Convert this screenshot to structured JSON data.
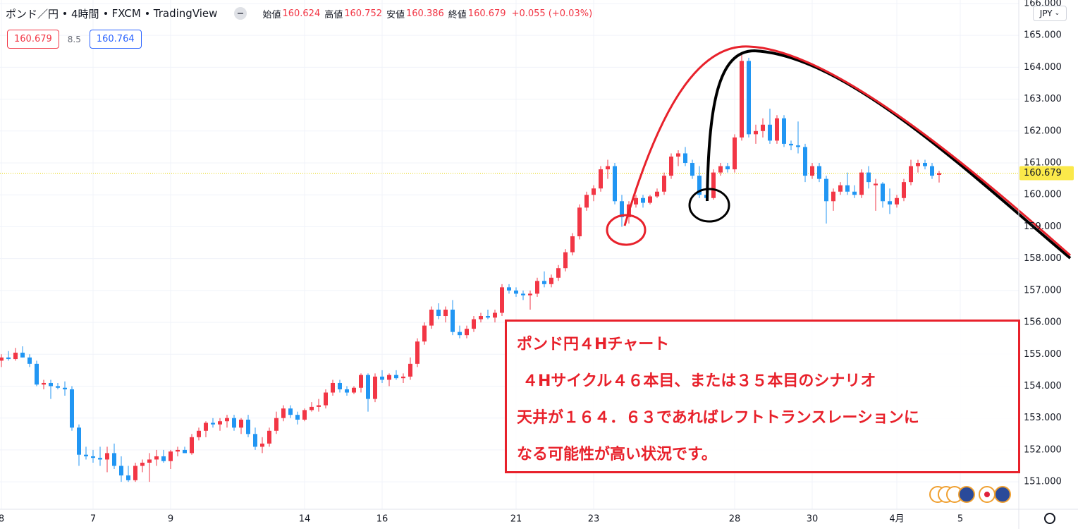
{
  "header": {
    "symbol": "ポンド／円",
    "interval": "4時間",
    "exchange": "FXCM",
    "source": "TradingView",
    "open_label": "始値",
    "high_label": "高値",
    "low_label": "安値",
    "close_label": "終値",
    "change": "+0.055 (+0.03%)"
  },
  "quote": {
    "sell": 160.679,
    "spread": 8.5,
    "buy": 160.764
  },
  "currency": "JPY",
  "annotation": {
    "lines": [
      "ポンド円４Hチャート",
      "４Hサイクル４６本目、または３５本目のシナリオ",
      "天井が１６４．６３であればレフトトランスレーションに",
      "なる可能性が高い状況です。"
    ]
  },
  "chart_data": {
    "type": "candlestick",
    "up_color": "#f23645",
    "down_color": "#2196f3",
    "grid": true,
    "ylim": [
      150.14,
      166.11
    ],
    "yticks": [
      {
        "value": 151,
        "label": "151.000"
      },
      {
        "value": 152,
        "label": "152.000"
      },
      {
        "value": 153,
        "label": "153.000"
      },
      {
        "value": 154,
        "label": "154.000"
      },
      {
        "value": 155,
        "label": "155.000"
      },
      {
        "value": 156,
        "label": "156.000"
      },
      {
        "value": 157,
        "label": "157.000"
      },
      {
        "value": 158,
        "label": "158.000"
      },
      {
        "value": 159,
        "label": "159.000"
      },
      {
        "value": 160,
        "label": "160.000"
      },
      {
        "value": 161,
        "label": "161.000"
      },
      {
        "value": 162,
        "label": "162.000"
      },
      {
        "value": 163,
        "label": "163.000"
      },
      {
        "value": 164,
        "label": "164.000"
      },
      {
        "value": 165,
        "label": "165.000"
      },
      {
        "value": 166,
        "label": "166.000"
      }
    ],
    "xlim": [
      -0.2,
      144.3
    ],
    "xticks": [
      {
        "value": 0,
        "label": "8"
      },
      {
        "value": 13,
        "label": "7"
      },
      {
        "value": 24,
        "label": "9"
      },
      {
        "value": 43,
        "label": "14"
      },
      {
        "value": 54,
        "label": "16"
      },
      {
        "value": 73,
        "label": "21"
      },
      {
        "value": 84,
        "label": "23"
      },
      {
        "value": 104,
        "label": "28"
      },
      {
        "value": 115,
        "label": "30"
      },
      {
        "value": 127,
        "label": "4月"
      },
      {
        "value": 136,
        "label": "5"
      }
    ],
    "ohlc": [
      [
        154.8,
        155.0,
        154.6,
        154.9
      ],
      [
        154.9,
        155.1,
        154.8,
        154.85
      ],
      [
        154.85,
        155.2,
        154.8,
        155.05
      ],
      [
        155.05,
        155.25,
        154.9,
        154.9
      ],
      [
        154.9,
        155.0,
        154.6,
        154.7
      ],
      [
        154.7,
        154.8,
        154.0,
        154.05
      ],
      [
        154.05,
        154.2,
        153.9,
        154.1
      ],
      [
        154.1,
        154.2,
        153.6,
        154.0
      ],
      [
        154.0,
        154.1,
        153.9,
        153.95
      ],
      [
        153.95,
        154.15,
        153.7,
        153.9
      ],
      [
        153.9,
        154.0,
        152.6,
        152.7
      ],
      [
        152.7,
        152.8,
        151.5,
        151.85
      ],
      [
        151.85,
        152.1,
        151.7,
        151.8
      ],
      [
        151.8,
        152.0,
        151.6,
        151.75
      ],
      [
        151.75,
        152.1,
        151.5,
        151.7
      ],
      [
        151.7,
        152.1,
        151.3,
        151.9
      ],
      [
        151.9,
        152.2,
        151.4,
        151.5
      ],
      [
        151.5,
        151.8,
        151.0,
        151.2
      ],
      [
        151.2,
        151.5,
        151.0,
        151.05
      ],
      [
        151.05,
        151.6,
        151.0,
        151.5
      ],
      [
        151.5,
        151.7,
        151.3,
        151.6
      ],
      [
        151.6,
        151.9,
        151.0,
        151.7
      ],
      [
        151.7,
        152.0,
        151.5,
        151.8
      ],
      [
        151.8,
        152.0,
        151.6,
        151.65
      ],
      [
        151.65,
        152.0,
        151.4,
        151.95
      ],
      [
        151.95,
        152.1,
        151.8,
        152.0
      ],
      [
        152.0,
        152.1,
        151.9,
        151.9
      ],
      [
        151.9,
        152.5,
        151.85,
        152.4
      ],
      [
        152.4,
        152.7,
        152.3,
        152.6
      ],
      [
        152.6,
        152.9,
        152.4,
        152.85
      ],
      [
        152.85,
        153.0,
        152.7,
        152.8
      ],
      [
        152.8,
        153.0,
        152.6,
        152.9
      ],
      [
        152.9,
        153.1,
        152.7,
        153.0
      ],
      [
        153.0,
        153.1,
        152.6,
        152.7
      ],
      [
        152.7,
        153.0,
        152.5,
        152.95
      ],
      [
        152.95,
        153.1,
        152.4,
        152.5
      ],
      [
        152.5,
        152.7,
        152.0,
        152.1
      ],
      [
        152.1,
        152.4,
        151.9,
        152.2
      ],
      [
        152.2,
        152.7,
        152.1,
        152.6
      ],
      [
        152.6,
        153.2,
        152.5,
        153.0
      ],
      [
        153.0,
        153.4,
        152.9,
        153.3
      ],
      [
        153.3,
        153.4,
        153.0,
        153.1
      ],
      [
        153.1,
        153.2,
        152.8,
        152.95
      ],
      [
        152.95,
        153.3,
        152.9,
        153.25
      ],
      [
        153.25,
        153.5,
        153.2,
        153.35
      ],
      [
        153.35,
        153.6,
        153.2,
        153.4
      ],
      [
        153.4,
        153.9,
        153.3,
        153.8
      ],
      [
        153.8,
        154.2,
        153.7,
        154.1
      ],
      [
        154.1,
        154.2,
        153.8,
        153.9
      ],
      [
        153.9,
        154.0,
        153.7,
        153.8
      ],
      [
        153.8,
        154.0,
        153.75,
        153.95
      ],
      [
        153.95,
        154.4,
        153.8,
        154.35
      ],
      [
        154.35,
        154.4,
        153.2,
        153.6
      ],
      [
        153.6,
        154.4,
        153.5,
        154.3
      ],
      [
        154.3,
        154.5,
        154.1,
        154.2
      ],
      [
        154.2,
        154.4,
        154.0,
        154.35
      ],
      [
        154.35,
        154.5,
        154.2,
        154.25
      ],
      [
        154.25,
        154.4,
        154.1,
        154.3
      ],
      [
        154.3,
        154.9,
        154.2,
        154.7
      ],
      [
        154.7,
        155.5,
        154.6,
        155.4
      ],
      [
        155.4,
        156.0,
        155.3,
        155.9
      ],
      [
        155.9,
        156.5,
        155.8,
        156.4
      ],
      [
        156.4,
        156.6,
        156.1,
        156.2
      ],
      [
        156.2,
        156.5,
        156.0,
        156.4
      ],
      [
        156.4,
        156.7,
        155.6,
        155.7
      ],
      [
        155.7,
        155.9,
        155.5,
        155.6
      ],
      [
        155.6,
        155.9,
        155.5,
        155.8
      ],
      [
        155.8,
        156.2,
        155.7,
        156.1
      ],
      [
        156.1,
        156.3,
        156.0,
        156.2
      ],
      [
        156.2,
        156.4,
        156.1,
        156.15
      ],
      [
        156.15,
        156.4,
        156.0,
        156.3
      ],
      [
        156.3,
        157.2,
        156.2,
        157.1
      ],
      [
        157.1,
        157.2,
        156.9,
        157.0
      ],
      [
        157.0,
        157.1,
        156.8,
        156.9
      ],
      [
        156.9,
        157.0,
        156.7,
        156.85
      ],
      [
        156.85,
        157.0,
        156.4,
        156.9
      ],
      [
        156.9,
        157.4,
        156.8,
        157.3
      ],
      [
        157.3,
        157.6,
        157.1,
        157.2
      ],
      [
        157.2,
        157.5,
        157.1,
        157.4
      ],
      [
        157.4,
        157.8,
        157.3,
        157.7
      ],
      [
        157.7,
        158.3,
        157.6,
        158.2
      ],
      [
        158.2,
        158.8,
        158.1,
        158.7
      ],
      [
        158.7,
        159.7,
        158.6,
        159.6
      ],
      [
        159.6,
        160.1,
        159.5,
        160.0
      ],
      [
        160.0,
        160.3,
        159.8,
        160.2
      ],
      [
        160.2,
        160.9,
        160.1,
        160.8
      ],
      [
        160.8,
        161.1,
        160.5,
        160.9
      ],
      [
        160.9,
        161.0,
        159.7,
        159.8
      ],
      [
        159.8,
        160.0,
        159.0,
        159.3
      ],
      [
        159.3,
        159.8,
        159.1,
        159.7
      ],
      [
        159.7,
        160.0,
        159.6,
        159.9
      ],
      [
        159.9,
        160.0,
        159.6,
        159.75
      ],
      [
        159.75,
        160.0,
        159.7,
        159.95
      ],
      [
        159.95,
        160.2,
        159.9,
        160.1
      ],
      [
        160.1,
        160.7,
        160.0,
        160.6
      ],
      [
        160.6,
        161.3,
        160.5,
        161.2
      ],
      [
        161.2,
        161.4,
        160.9,
        161.3
      ],
      [
        161.3,
        161.5,
        160.9,
        161.0
      ],
      [
        161.0,
        161.1,
        160.5,
        160.6
      ],
      [
        160.6,
        160.9,
        159.9,
        160.0
      ],
      [
        160.0,
        160.3,
        159.8,
        159.9
      ],
      [
        159.9,
        160.8,
        159.85,
        160.7
      ],
      [
        160.7,
        161.0,
        160.6,
        160.9
      ],
      [
        160.9,
        161.0,
        160.7,
        160.8
      ],
      [
        160.8,
        161.9,
        160.7,
        161.8
      ],
      [
        161.8,
        164.4,
        161.7,
        164.2
      ],
      [
        164.2,
        164.3,
        161.8,
        161.9
      ],
      [
        161.9,
        162.2,
        161.6,
        162.0
      ],
      [
        162.0,
        162.4,
        161.8,
        162.2
      ],
      [
        162.2,
        162.7,
        161.6,
        161.7
      ],
      [
        161.7,
        162.5,
        161.6,
        162.4
      ],
      [
        162.4,
        162.5,
        161.5,
        161.6
      ],
      [
        161.6,
        161.7,
        161.4,
        161.55
      ],
      [
        161.55,
        162.3,
        161.3,
        161.5
      ],
      [
        161.5,
        161.6,
        160.4,
        160.6
      ],
      [
        160.6,
        161.0,
        160.5,
        160.9
      ],
      [
        160.9,
        161.0,
        160.4,
        160.5
      ],
      [
        160.5,
        160.6,
        159.1,
        159.8
      ],
      [
        159.8,
        160.2,
        159.5,
        160.1
      ],
      [
        160.1,
        160.4,
        160.0,
        160.3
      ],
      [
        160.3,
        160.7,
        160.0,
        160.1
      ],
      [
        160.1,
        160.3,
        159.9,
        160.0
      ],
      [
        160.0,
        160.8,
        159.9,
        160.7
      ],
      [
        160.7,
        160.9,
        160.2,
        160.4
      ],
      [
        160.3,
        160.5,
        159.5,
        160.35
      ],
      [
        160.35,
        160.4,
        159.6,
        159.8
      ],
      [
        159.8,
        160.2,
        159.4,
        159.7
      ],
      [
        159.7,
        160.0,
        159.6,
        159.9
      ],
      [
        159.9,
        160.5,
        159.8,
        160.4
      ],
      [
        160.4,
        161.1,
        160.3,
        160.9
      ],
      [
        160.9,
        161.1,
        160.7,
        161.0
      ],
      [
        161.0,
        161.1,
        160.8,
        160.9
      ],
      [
        160.9,
        161.0,
        160.5,
        160.6
      ],
      [
        160.624,
        160.752,
        160.386,
        160.679
      ]
    ]
  }
}
